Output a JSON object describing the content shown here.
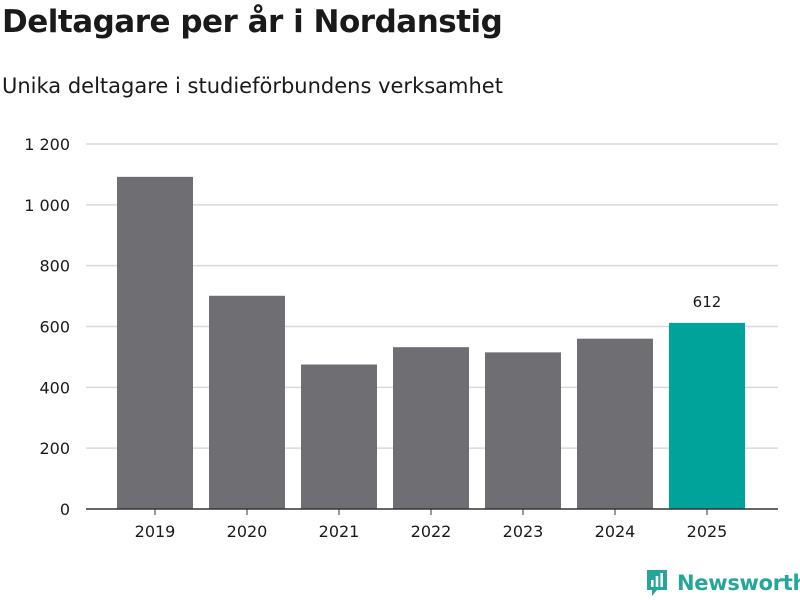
{
  "chart_data": {
    "type": "bar",
    "title": "Deltagare per år i Nordanstig",
    "subtitle": "Unika deltagare i studieförbundens verksamhet",
    "categories": [
      "2019",
      "2020",
      "2021",
      "2022",
      "2023",
      "2024",
      "2025"
    ],
    "values": [
      1092,
      701,
      475,
      532,
      515,
      560,
      612
    ],
    "highlight_index": 6,
    "data_labels": [
      {
        "index": 6,
        "text": "612"
      }
    ],
    "ylim": [
      0,
      1200
    ],
    "yticks": [
      0,
      200,
      400,
      600,
      800,
      1000,
      1200
    ],
    "ytick_labels": [
      "0",
      "200",
      "400",
      "600",
      "800",
      "1 000",
      "1 200"
    ],
    "xlabel": "",
    "ylabel": "",
    "grid": true,
    "colors": {
      "bar": "#6f6e73",
      "highlight": "#00a39a",
      "grid": "#d9d9d9",
      "axis": "#333333"
    }
  },
  "brand": {
    "name": "Newsworthy",
    "icon": "newsworthy-logo-icon",
    "color": "#26a69a"
  }
}
